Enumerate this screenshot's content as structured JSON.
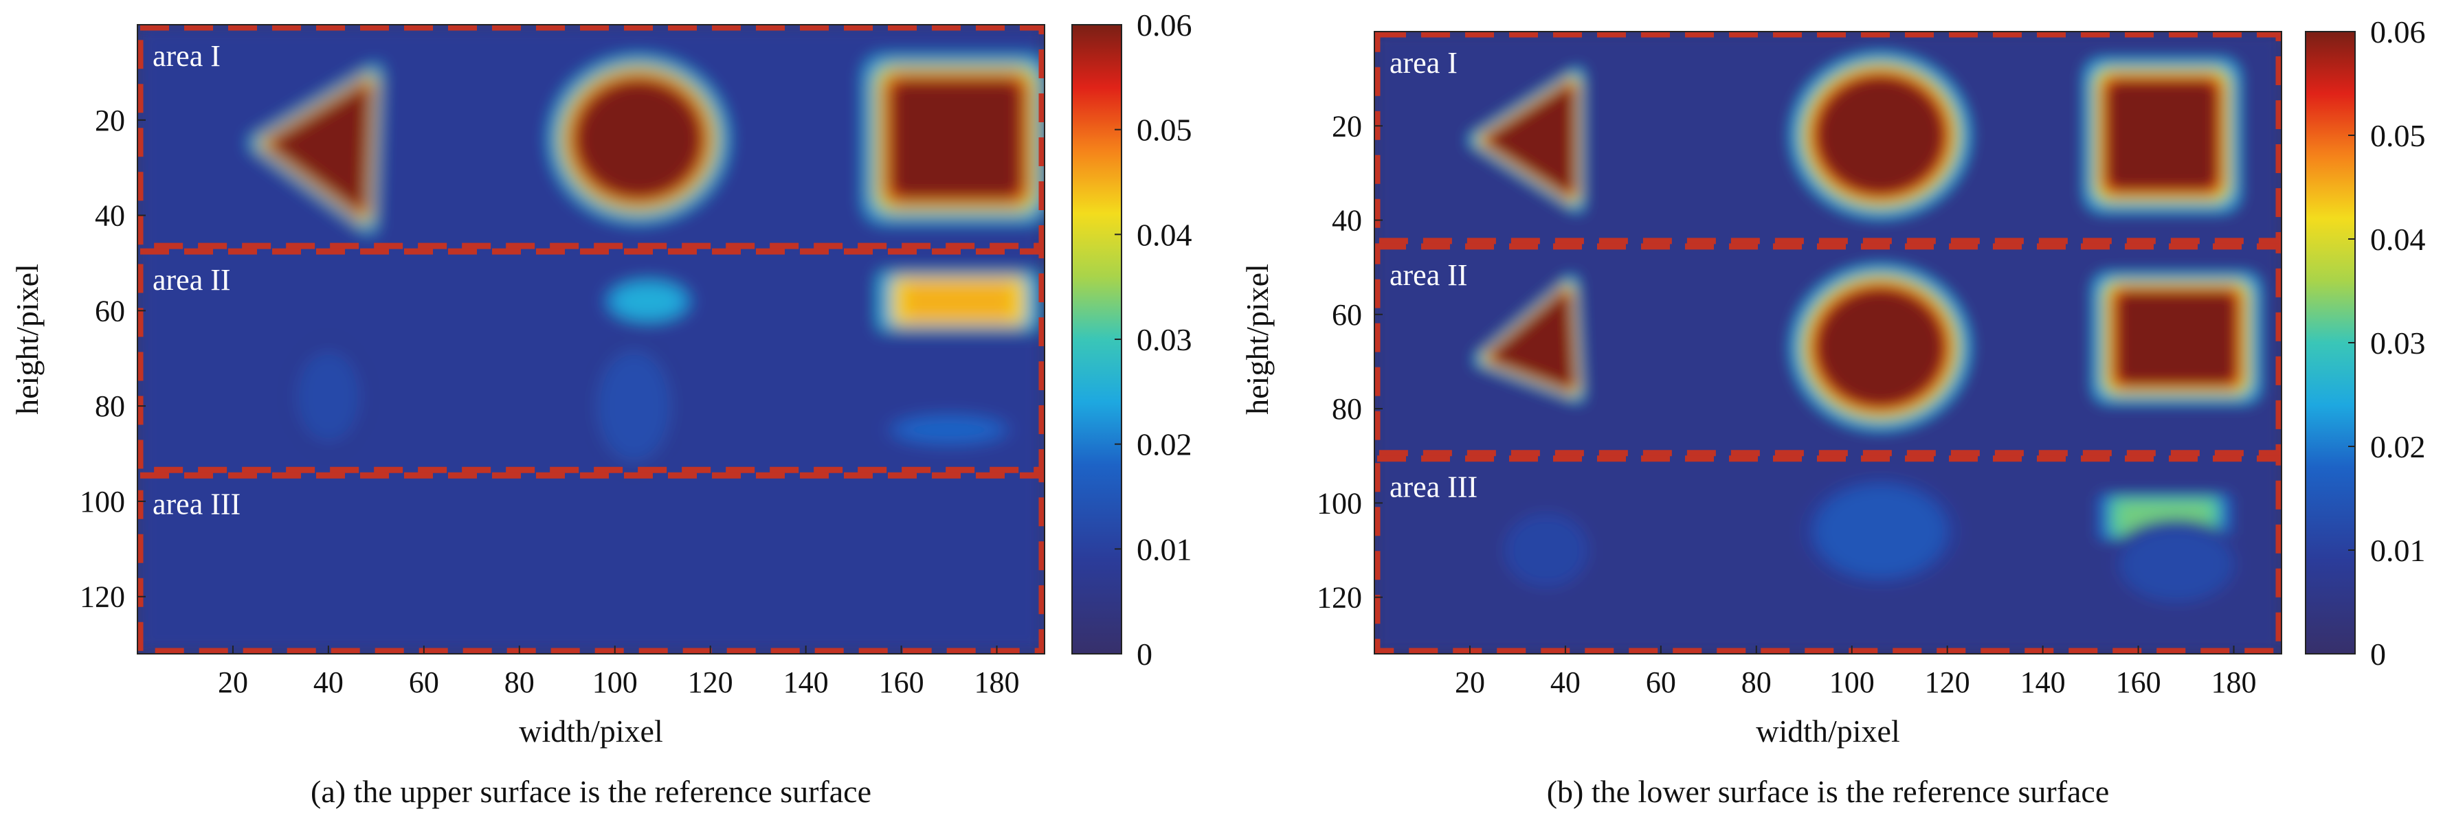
{
  "chart_data": [
    {
      "type": "heatmap",
      "caption": "(a) the upper surface is the reference surface",
      "xlabel": "width/pixel",
      "ylabel": "height/pixel",
      "xticks": [
        20,
        40,
        60,
        80,
        100,
        120,
        140,
        160,
        180
      ],
      "yticks": [
        20,
        40,
        60,
        80,
        100,
        120
      ],
      "xlim": [
        0,
        190
      ],
      "ylim": [
        0,
        132
      ],
      "colorbar": {
        "min": 0,
        "max": 0.06,
        "ticks": [
          "0",
          "0.01",
          "0.02",
          "0.03",
          "0.04",
          "0.05",
          "0.06"
        ]
      },
      "areas": [
        {
          "label": "area I",
          "y_range": [
            0,
            47
          ]
        },
        {
          "label": "area II",
          "y_range": [
            47,
            94
          ]
        },
        {
          "label": "area III",
          "y_range": [
            94,
            132
          ]
        }
      ],
      "background_value": 0.008,
      "blobs": [
        {
          "shape": "triangle",
          "points": [
            [
              28,
              25
            ],
            [
              48,
              13
            ],
            [
              47,
              39
            ]
          ],
          "value": 0.06
        },
        {
          "shape": "ellipse",
          "cx": 105,
          "cy": 24,
          "rx": 15,
          "ry": 14,
          "value": 0.06
        },
        {
          "shape": "rect",
          "x0": 156,
          "y0": 10,
          "x1": 187,
          "y1": 38,
          "value": 0.06
        },
        {
          "shape": "ellipse",
          "cx": 107,
          "cy": 58,
          "rx": 8,
          "ry": 4,
          "value": 0.025
        },
        {
          "shape": "rect",
          "x0": 158,
          "y0": 53,
          "x1": 186,
          "y1": 63,
          "value": 0.045
        },
        {
          "shape": "ellipse",
          "cx": 170,
          "cy": 85,
          "rx": 12,
          "ry": 3,
          "value": 0.018
        },
        {
          "shape": "ellipse",
          "cx": 40,
          "cy": 78,
          "rx": 7,
          "ry": 10,
          "value": 0.012
        },
        {
          "shape": "ellipse",
          "cx": 104,
          "cy": 80,
          "rx": 8,
          "ry": 12,
          "value": 0.013
        }
      ]
    },
    {
      "type": "heatmap",
      "caption": "(b) the lower surface is the reference surface",
      "xlabel": "width/pixel",
      "ylabel": "height/pixel",
      "xticks": [
        20,
        40,
        60,
        80,
        100,
        120,
        140,
        160,
        180
      ],
      "yticks": [
        20,
        40,
        60,
        80,
        100,
        120
      ],
      "xlim": [
        0,
        190
      ],
      "ylim": [
        0,
        132
      ],
      "colorbar": {
        "min": 0,
        "max": 0.06,
        "ticks": [
          "0",
          "0.01",
          "0.02",
          "0.03",
          "0.04",
          "0.05",
          "0.06"
        ]
      },
      "areas": [
        {
          "label": "area I",
          "y_range": [
            0,
            45
          ]
        },
        {
          "label": "area II",
          "y_range": [
            45,
            90
          ]
        },
        {
          "label": "area III",
          "y_range": [
            90,
            132
          ]
        }
      ],
      "background_value": 0.006,
      "blobs": [
        {
          "shape": "triangle",
          "points": [
            [
              24,
              23
            ],
            [
              41,
              12
            ],
            [
              41,
              34
            ]
          ],
          "value": 0.06
        },
        {
          "shape": "ellipse",
          "cx": 106,
          "cy": 22,
          "rx": 15,
          "ry": 14,
          "value": 0.06
        },
        {
          "shape": "rect",
          "x0": 152,
          "y0": 9,
          "x1": 178,
          "y1": 35,
          "value": 0.06
        },
        {
          "shape": "triangle",
          "points": [
            [
              25,
              69
            ],
            [
              40,
              56
            ],
            [
              41,
              75
            ]
          ],
          "value": 0.06
        },
        {
          "shape": "ellipse",
          "cx": 106,
          "cy": 67,
          "rx": 15,
          "ry": 14,
          "value": 0.06
        },
        {
          "shape": "rect",
          "x0": 154,
          "y0": 54,
          "x1": 182,
          "y1": 76,
          "value": 0.06
        },
        {
          "shape": "ellipse",
          "cx": 36,
          "cy": 110,
          "rx": 9,
          "ry": 8,
          "value": 0.011
        },
        {
          "shape": "ellipse",
          "cx": 106,
          "cy": 106,
          "rx": 14,
          "ry": 10,
          "value": 0.015
        },
        {
          "shape": "rect",
          "x0": 154,
          "y0": 99,
          "x1": 177,
          "y1": 107,
          "value": 0.033
        },
        {
          "shape": "ellipse",
          "cx": 168,
          "cy": 113,
          "rx": 12,
          "ry": 8,
          "value": 0.012
        }
      ]
    }
  ]
}
